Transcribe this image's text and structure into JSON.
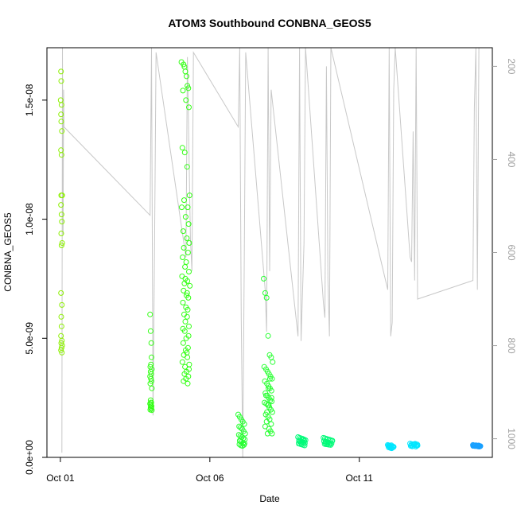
{
  "chart_data": {
    "type": "scatter",
    "title": "ATOM3 Southbound CONBNA_GEOS5",
    "xlabel": "Date",
    "ylabel": "CONBNA_GEOS5",
    "x_ticks": [
      "Oct 01",
      "Oct 06",
      "Oct 11"
    ],
    "y_ticks": [
      "0.0e+00",
      "5.0e-09",
      "1.0e-08",
      "1.5e-08"
    ],
    "y2_ticks": [
      "200",
      "400",
      "600",
      "800",
      "1000"
    ],
    "x_axis": {
      "unit": "days after Oct 01 00:00",
      "range": [
        -0.45,
        14.45
      ]
    },
    "ylim": [
      0,
      1.72e-08
    ],
    "y2lim": [
      1040,
      160
    ],
    "colors": {
      "pressure_line": "#c8c8c8",
      "frame": "#000000",
      "right_axis": "#a0a0a0"
    },
    "pressure_track": [
      [
        0.05,
        1030
      ],
      [
        0.07,
        160
      ],
      [
        0.09,
        560
      ],
      [
        0.11,
        250
      ],
      [
        0.12,
        330
      ],
      [
        3.0,
        520
      ],
      [
        3.05,
        160
      ],
      [
        3.1,
        950
      ],
      [
        3.15,
        590
      ],
      [
        3.2,
        170
      ],
      [
        4.2,
        610
      ],
      [
        4.25,
        180
      ],
      [
        4.35,
        570
      ],
      [
        4.4,
        640
      ],
      [
        4.45,
        170
      ],
      [
        5.95,
        330
      ],
      [
        6.0,
        160
      ],
      [
        6.05,
        740
      ],
      [
        6.1,
        1040
      ],
      [
        6.15,
        620
      ],
      [
        6.2,
        170
      ],
      [
        6.8,
        640
      ],
      [
        6.85,
        680
      ],
      [
        6.9,
        770
      ],
      [
        6.95,
        160
      ],
      [
        7.0,
        640
      ],
      [
        7.05,
        250
      ],
      [
        7.95,
        780
      ],
      [
        8.0,
        160
      ],
      [
        8.05,
        790
      ],
      [
        8.15,
        580
      ],
      [
        8.2,
        160
      ],
      [
        8.8,
        710
      ],
      [
        8.85,
        740
      ],
      [
        8.9,
        200
      ],
      [
        8.95,
        660
      ],
      [
        9.0,
        780
      ],
      [
        9.05,
        160
      ],
      [
        10.95,
        680
      ],
      [
        11.0,
        160
      ],
      [
        11.05,
        780
      ],
      [
        11.1,
        750
      ],
      [
        11.15,
        250
      ],
      [
        11.2,
        160
      ],
      [
        11.7,
        610
      ],
      [
        11.75,
        620
      ],
      [
        11.8,
        340
      ],
      [
        11.85,
        660
      ],
      [
        11.9,
        160
      ],
      [
        11.95,
        700
      ],
      [
        13.8,
        660
      ],
      [
        13.85,
        290
      ],
      [
        13.9,
        160
      ],
      [
        13.95,
        680
      ],
      [
        14.0,
        160
      ]
    ],
    "series": [
      {
        "color": "#8cf000",
        "x": [
          0.02,
          0.03,
          0.01,
          0.04,
          0.02,
          0.03,
          0.05,
          0.02,
          0.04,
          0.03,
          0.06,
          0.02,
          0.04,
          0.05,
          0.03,
          0.06,
          0.04,
          0.02,
          0.05,
          0.03,
          0.04,
          0.02,
          0.05,
          0.03,
          0.06,
          0.04,
          0.02,
          0.05
        ],
        "y": [
          1.62e-08,
          1.58e-08,
          1.5e-08,
          1.48e-08,
          1.44e-08,
          1.41e-08,
          1.37e-08,
          1.29e-08,
          1.27e-08,
          1.1e-08,
          1.1e-08,
          1.06e-08,
          1.02e-08,
          9.9e-09,
          9.4e-09,
          9e-09,
          8.9e-09,
          6.9e-09,
          6.4e-09,
          5.9e-09,
          5.5e-09,
          5.1e-09,
          4.9e-09,
          4.8e-09,
          4.7e-09,
          4.6e-09,
          4.5e-09,
          4.4e-09
        ]
      },
      {
        "color": "#32ff14",
        "x": [
          3.0,
          3.02,
          3.04,
          3.05,
          3.03,
          3.01,
          3.06,
          3.02,
          3.04,
          3.0,
          3.03,
          3.05,
          3.01,
          3.06,
          3.02,
          3.04,
          3.0,
          3.03,
          3.05,
          3.02,
          3.04,
          3.01,
          3.06,
          3.03
        ],
        "y": [
          6e-09,
          5.3e-09,
          4.8e-09,
          4.2e-09,
          3.9e-09,
          3.8e-09,
          3.7e-09,
          3.6e-09,
          3.5e-09,
          3.4e-09,
          3.3e-09,
          3.2e-09,
          3.1e-09,
          2.9e-09,
          2.4e-09,
          2.3e-09,
          2.25e-09,
          2.2e-09,
          2.15e-09,
          2.1e-09,
          2.05e-09,
          2e-09,
          1.98e-09,
          2.3e-09
        ]
      },
      {
        "color": "#32ff14",
        "x": [
          4.05,
          4.12,
          4.15,
          4.18,
          4.22,
          4.25,
          4.28,
          4.1,
          4.2,
          4.3,
          4.08,
          4.16,
          4.24,
          4.32,
          4.14,
          4.26,
          4.06,
          4.19,
          4.29,
          4.11,
          4.23,
          4.31,
          4.13,
          4.27,
          4.09,
          4.21,
          4.17,
          4.3,
          4.07,
          4.25,
          4.15,
          4.33,
          4.12,
          4.22,
          4.28,
          4.1,
          4.2,
          4.26,
          4.14,
          4.24,
          4.18,
          4.3,
          4.16,
          4.29,
          4.21,
          4.11,
          4.27,
          4.19,
          4.23,
          4.13,
          4.25,
          4.08,
          4.31,
          4.17,
          4.22,
          4.15,
          4.28,
          4.2,
          4.12,
          4.26,
          4.18,
          4.24,
          4.1,
          4.3
        ],
        "y": [
          1.66e-08,
          1.65e-08,
          1.64e-08,
          1.62e-08,
          1.6e-08,
          1.56e-08,
          1.55e-08,
          1.54e-08,
          1.5e-08,
          1.47e-08,
          1.3e-08,
          1.28e-08,
          1.22e-08,
          1.1e-08,
          1.08e-08,
          1.05e-08,
          1.05e-08,
          1.01e-08,
          9.8e-09,
          9.5e-09,
          9.2e-09,
          9e-09,
          8.8e-09,
          8.6e-09,
          8.4e-09,
          8.2e-09,
          8e-09,
          7.8e-09,
          7.6e-09,
          7.4e-09,
          7.3e-09,
          7.2e-09,
          7e-09,
          6.8e-09,
          6.7e-09,
          6.5e-09,
          6.3e-09,
          6.2e-09,
          6e-09,
          5.9e-09,
          5.7e-09,
          5.5e-09,
          5.3e-09,
          5.1e-09,
          5e-09,
          4.8e-09,
          4.6e-09,
          4.5e-09,
          4.4e-09,
          4.3e-09,
          4.2e-09,
          4e-09,
          3.9e-09,
          3.8e-09,
          3.6e-09,
          3.5e-09,
          3.4e-09,
          3.3e-09,
          3.2e-09,
          3.1e-09,
          7.5e-09,
          6.9e-09,
          5.4e-09,
          3.7e-09
        ]
      },
      {
        "color": "#28ff32",
        "x": [
          5.95,
          6.0,
          6.05,
          6.1,
          6.15,
          5.98,
          6.03,
          6.08,
          6.13,
          6.18,
          5.97,
          6.02,
          6.07,
          6.12,
          6.17,
          6.0,
          6.06,
          6.11,
          5.99,
          6.04,
          6.09,
          6.14,
          6.01,
          6.16
        ],
        "y": [
          1.8e-09,
          1.7e-09,
          1.6e-09,
          1.5e-09,
          1.4e-09,
          1.3e-09,
          1.25e-09,
          1.2e-09,
          1.1e-09,
          1e-09,
          9.5e-10,
          9e-10,
          8.5e-10,
          8e-10,
          7.5e-10,
          7e-10,
          6.5e-10,
          6e-10,
          5.5e-10,
          5e-10,
          4.8e-10,
          5.2e-10,
          6.8e-10,
          5.8e-10
        ]
      },
      {
        "color": "#28ff32",
        "x": [
          6.8,
          6.85,
          6.9,
          6.95,
          7.0,
          7.05,
          7.1,
          6.82,
          6.88,
          6.93,
          6.98,
          7.03,
          7.08,
          6.84,
          6.91,
          6.96,
          7.01,
          7.06,
          6.86,
          6.92,
          6.97,
          7.02,
          7.07,
          6.83,
          6.89,
          6.94,
          6.99,
          7.04,
          7.09,
          6.87,
          6.95,
          7.0,
          6.9,
          7.05,
          6.85,
          6.98,
          7.03,
          6.93,
          7.08,
          6.88,
          6.96,
          7.01,
          6.91,
          7.06,
          6.97
        ],
        "y": [
          7.5e-09,
          6.9e-09,
          6.7e-09,
          5.1e-09,
          4.3e-09,
          4.2e-09,
          4e-09,
          3.8e-09,
          3.7e-09,
          3.6e-09,
          3.5e-09,
          3.4e-09,
          3.3e-09,
          3.2e-09,
          3.1e-09,
          3e-09,
          2.9e-09,
          2.8e-09,
          2.7e-09,
          2.6e-09,
          2.5e-09,
          2.4e-09,
          2.35e-09,
          2.3e-09,
          2.25e-09,
          2.2e-09,
          2.1e-09,
          2e-09,
          1.9e-09,
          1.8e-09,
          1.7e-09,
          1.6e-09,
          1.5e-09,
          1.4e-09,
          1.3e-09,
          1.2e-09,
          1.1e-09,
          1e-09,
          1e-09,
          2.6e-09,
          2.9e-09,
          3.3e-09,
          1.9e-09,
          2.5e-09,
          2.2e-09
        ]
      },
      {
        "color": "#00fa78",
        "x": [
          7.95,
          8.0,
          8.05,
          8.1,
          8.15,
          8.2,
          7.98,
          8.03,
          8.08,
          8.13,
          8.18,
          7.97,
          8.02,
          8.07,
          8.12,
          8.17,
          8.01,
          8.11,
          8.06,
          8.16
        ],
        "y": [
          8.5e-10,
          8.2e-10,
          8e-10,
          7.8e-10,
          7.5e-10,
          7.2e-10,
          7e-10,
          6.8e-10,
          6.5e-10,
          6.2e-10,
          6e-10,
          5.8e-10,
          5.6e-10,
          5.4e-10,
          5.2e-10,
          5e-10,
          6.6e-10,
          7.4e-10,
          5.9e-10,
          6.9e-10
        ]
      },
      {
        "color": "#00fa78",
        "x": [
          8.8,
          8.85,
          8.9,
          8.95,
          9.0,
          9.05,
          9.1,
          8.82,
          8.87,
          8.92,
          8.97,
          9.02,
          9.07,
          8.84,
          8.89,
          8.94,
          8.99,
          9.04,
          9.09,
          8.86
        ],
        "y": [
          8.2e-10,
          8e-10,
          7.8e-10,
          7.6e-10,
          7.4e-10,
          7.2e-10,
          7e-10,
          6.8e-10,
          6.6e-10,
          6.4e-10,
          6.2e-10,
          6e-10,
          5.8e-10,
          5.6e-10,
          5.5e-10,
          5.4e-10,
          5.3e-10,
          5.2e-10,
          6.9e-10,
          6.1e-10
        ]
      },
      {
        "color": "#00e6ff",
        "x": [
          10.95,
          11.0,
          11.05,
          11.1,
          11.15,
          10.98,
          11.03,
          11.08,
          11.13,
          10.97,
          11.02,
          11.07,
          11.12,
          11.01,
          11.06
        ],
        "y": [
          5.2e-10,
          5e-10,
          4.8e-10,
          4.6e-10,
          4.4e-10,
          4.2e-10,
          4e-10,
          3.8e-10,
          4.5e-10,
          4.9e-10,
          4.3e-10,
          5.1e-10,
          4.1e-10,
          4.7e-10,
          3.9e-10
        ]
      },
      {
        "color": "#00e6ff",
        "x": [
          11.7,
          11.75,
          11.8,
          11.85,
          11.9,
          11.95,
          11.72,
          11.77,
          11.82,
          11.87,
          11.92,
          11.74,
          11.79,
          11.84,
          11.89,
          11.94
        ],
        "y": [
          5.8e-10,
          5.6e-10,
          5.5e-10,
          5.4e-10,
          5.2e-10,
          5e-10,
          4.8e-10,
          4.6e-10,
          5.3e-10,
          5.7e-10,
          4.9e-10,
          5.1e-10,
          4.7e-10,
          5.6e-10,
          4.5e-10,
          5.4e-10
        ]
      },
      {
        "color": "#19a0ff",
        "x": [
          13.8,
          13.83,
          13.86,
          13.89,
          13.92,
          13.95,
          13.98,
          14.01,
          14.04,
          13.81,
          13.84,
          13.87,
          13.9,
          13.93,
          13.96,
          13.99,
          14.02,
          14.05,
          13.82,
          13.88,
          13.94,
          14.0
        ],
        "y": [
          5.2e-10,
          5.1e-10,
          5e-10,
          4.9e-10,
          4.8e-10,
          4.7e-10,
          4.6e-10,
          4.5e-10,
          4.6e-10,
          4.8e-10,
          5e-10,
          4.7e-10,
          5.1e-10,
          4.9e-10,
          4.6e-10,
          5e-10,
          4.8e-10,
          4.7e-10,
          4.9e-10,
          4.8e-10,
          4.7e-10,
          4.9e-10
        ]
      }
    ]
  }
}
